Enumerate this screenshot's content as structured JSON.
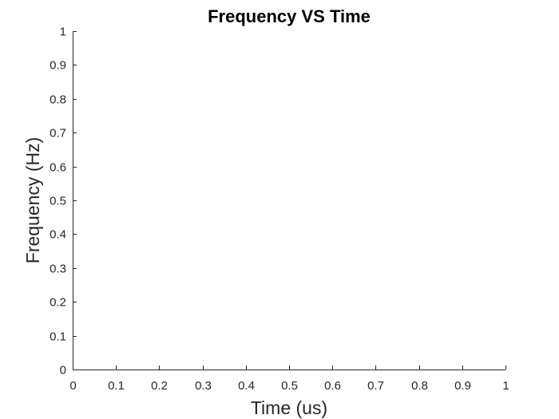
{
  "chart_data": {
    "type": "line",
    "title": "Frequency VS Time",
    "xlabel": "Time (us)",
    "ylabel": "Frequency (Hz)",
    "xlim": [
      0,
      1
    ],
    "ylim": [
      0,
      1
    ],
    "x_ticks": [
      "0",
      "0.1",
      "0.2",
      "0.3",
      "0.4",
      "0.5",
      "0.6",
      "0.7",
      "0.8",
      "0.9",
      "1"
    ],
    "y_ticks": [
      "0",
      "0.1",
      "0.2",
      "0.3",
      "0.4",
      "0.5",
      "0.6",
      "0.7",
      "0.8",
      "0.9",
      "1"
    ],
    "grid": false,
    "series": []
  }
}
